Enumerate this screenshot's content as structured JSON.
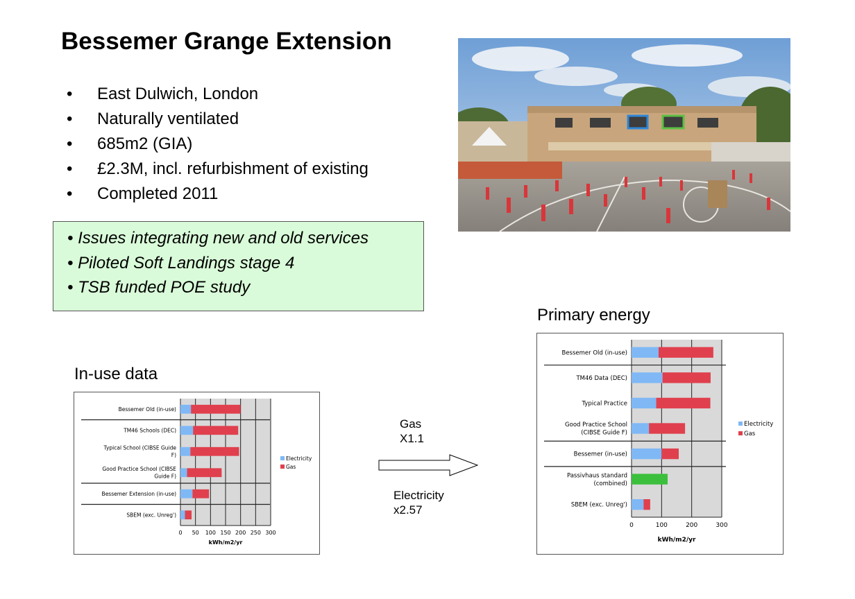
{
  "slide": {
    "title": "Bessemer Grange Extension",
    "facts": [
      "East Dulwich, London",
      "Naturally ventilated",
      "685m2 (GIA)",
      "£2.3M, incl. refurbishment of existing",
      "Completed 2011"
    ],
    "bullet_glyph": "•",
    "issues": [
      "• Issues integrating new and old services",
      "• Piloted Soft Landings stage 4",
      "• TSB funded POE study"
    ],
    "issues_background": "#d9fbd9",
    "conversion": {
      "gas_label": "Gas",
      "gas_factor": "X1.1",
      "electricity_label": "Electricity",
      "electricity_factor": "x2.57"
    },
    "headings": {
      "in_use": "In-use data",
      "primary": "Primary energy"
    }
  },
  "colors": {
    "electricity": "#7fb8f5",
    "gas": "#e0404d",
    "passivhaus": "#3cbf3c",
    "plot_background": "#d9d9d9"
  },
  "chart_data": [
    {
      "id": "in-use",
      "type": "bar",
      "orientation": "horizontal",
      "stacked": true,
      "title": "In-use data",
      "xlabel": "kWh/m2/yr",
      "ylabel": "",
      "xlim": [
        0,
        300
      ],
      "xticks": [
        0,
        50,
        100,
        150,
        200,
        250,
        300
      ],
      "grid": true,
      "legend": "right",
      "categories": [
        [
          "Bessemer Old (in-use)"
        ],
        [
          "TM46 Schools (DEC)"
        ],
        [
          "Typical School (CIBSE Guide",
          "F)"
        ],
        [
          "Good Practice School (CIBSE",
          "Guide F)"
        ],
        [
          "Bessemer Extension (in-use)"
        ],
        [
          "SBEM  (exc. Unreg')"
        ]
      ],
      "separators_after": [
        0,
        3,
        4
      ],
      "series": [
        {
          "name": "Electricity",
          "values": [
            35,
            42,
            33,
            22,
            40,
            15
          ]
        },
        {
          "name": "Gas",
          "values": [
            165,
            150,
            162,
            115,
            55,
            22
          ]
        }
      ]
    },
    {
      "id": "primary",
      "type": "bar",
      "orientation": "horizontal",
      "stacked": true,
      "title": "Primary energy",
      "xlabel": "kWh/m2/yr",
      "ylabel": "",
      "xlim": [
        0,
        300
      ],
      "xticks": [
        0,
        100,
        200,
        300
      ],
      "grid": true,
      "legend": "right",
      "categories": [
        [
          "Bessemer Old (in-use)"
        ],
        [
          "TM46 Data (DEC)"
        ],
        [
          "Typical Practice"
        ],
        [
          "Good Practice School",
          "(CIBSE Guide F)"
        ],
        [
          "Bessemer (in-use)"
        ],
        [
          "Passivhaus standard",
          "(combined)"
        ],
        [
          "SBEM  (exc. Unreg')"
        ]
      ],
      "separators_after": [
        0,
        3,
        4
      ],
      "series": [
        {
          "name": "Electricity",
          "values": [
            90,
            103,
            82,
            58,
            100,
            0,
            40
          ]
        },
        {
          "name": "Gas",
          "values": [
            182,
            160,
            180,
            120,
            57,
            0,
            22
          ]
        },
        {
          "name": "",
          "values": [
            0,
            0,
            0,
            0,
            0,
            120,
            0
          ]
        }
      ]
    }
  ]
}
